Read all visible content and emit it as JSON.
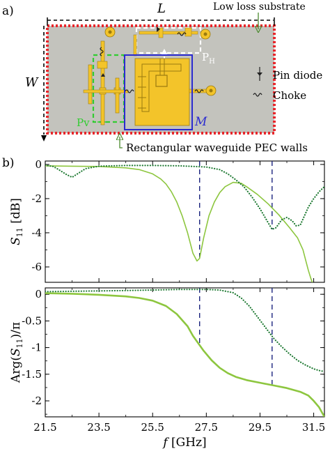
{
  "panel_a": {
    "label": "a)",
    "dim_L": "L",
    "dim_W": "W",
    "substrate_label": "Low loss substrate",
    "waveguide_label": "Rectangular waveguide PEC walls",
    "pin_diode_label": "Pin diode",
    "choke_label": "Choke",
    "ph_label": "P",
    "ph_sub": "H",
    "pv_label": "Pv",
    "m_label": "M",
    "colors": {
      "substrate": "#c3c3bd",
      "pec_wall": "#e8262b",
      "metal": "#f3c42a",
      "metal_edge": "#9a7a10",
      "ph_box": "#ffffff",
      "pv_box": "#32cc32",
      "m_box": "#2a2ad0",
      "pointer": "#4b8a2e"
    }
  },
  "panel_b": {
    "label": "b)"
  },
  "chart_data": [
    {
      "type": "line",
      "ylabel": "S11 [dB]",
      "ylabel_main": "S",
      "ylabel_sub": "11",
      "ylabel_unit": " [dB]",
      "xlim": [
        21.5,
        31.9
      ],
      "ylim": [
        -6.9,
        0.2
      ],
      "yticks": [
        0,
        -2,
        -4,
        -6
      ],
      "ytick_labels": [
        "0",
        "-2",
        "-4",
        "-6"
      ],
      "grid": false,
      "series": [
        {
          "style": "solid",
          "color": "#8dc63f",
          "x": [
            21.5,
            22.5,
            23.5,
            24.5,
            25.0,
            25.5,
            25.8,
            26.0,
            26.2,
            26.4,
            26.6,
            26.8,
            27.0,
            27.15,
            27.25,
            27.4,
            27.6,
            27.8,
            28.0,
            28.2,
            28.5,
            28.8,
            29.0,
            29.4,
            29.8,
            30.2,
            30.6,
            30.9,
            31.1,
            31.2,
            31.3,
            31.4,
            31.5,
            31.6
          ],
          "y": [
            -0.08,
            -0.1,
            -0.12,
            -0.2,
            -0.3,
            -0.55,
            -0.85,
            -1.15,
            -1.6,
            -2.2,
            -3.0,
            -4.0,
            -5.2,
            -5.65,
            -5.5,
            -4.3,
            -3.0,
            -2.2,
            -1.65,
            -1.3,
            -1.05,
            -1.1,
            -1.3,
            -1.75,
            -2.3,
            -2.95,
            -3.7,
            -4.3,
            -5.0,
            -5.6,
            -6.2,
            -6.7,
            -7.1,
            -7.6
          ]
        },
        {
          "style": "dotted",
          "color": "#1f7a33",
          "x": [
            21.5,
            21.8,
            22.0,
            22.3,
            22.5,
            22.7,
            23.0,
            23.5,
            24.5,
            25.5,
            26.5,
            27.5,
            28.0,
            28.3,
            28.6,
            28.9,
            29.2,
            29.5,
            29.8,
            29.95,
            30.1,
            30.3,
            30.5,
            30.7,
            30.85,
            31.0,
            31.1,
            31.3,
            31.5,
            31.7,
            31.9
          ],
          "y": [
            -0.05,
            -0.12,
            -0.3,
            -0.6,
            -0.75,
            -0.55,
            -0.25,
            -0.1,
            -0.06,
            -0.06,
            -0.08,
            -0.15,
            -0.3,
            -0.55,
            -0.9,
            -1.3,
            -1.9,
            -2.6,
            -3.4,
            -3.8,
            -3.7,
            -3.25,
            -3.1,
            -3.3,
            -3.6,
            -3.55,
            -3.2,
            -2.5,
            -2.0,
            -1.6,
            -1.3
          ]
        }
      ],
      "vlines": [
        {
          "x": 27.25,
          "y_from": -5.65,
          "y_to": 0.2,
          "color": "#1a237e"
        },
        {
          "x": 29.95,
          "y_from": -3.8,
          "y_to": 0.2,
          "color": "#1a237e"
        }
      ]
    },
    {
      "type": "line",
      "ylabel": "Arg(S11)/π",
      "ylabel_pre": "Arg(",
      "ylabel_main": "S",
      "ylabel_sub": "11",
      "ylabel_post": ")/π",
      "xlabel": "f [GHz]",
      "xlabel_main": "f",
      "xlabel_unit": " [GHz]",
      "xlim": [
        21.5,
        31.9
      ],
      "ylim": [
        -2.3,
        0.12
      ],
      "xticks": [
        21.5,
        23.5,
        25.5,
        27.5,
        29.5,
        31.5
      ],
      "xtick_labels": [
        "21.5",
        "23.5",
        "25.5",
        "27.5",
        "29.5",
        "31.5"
      ],
      "yticks": [
        0,
        -0.5,
        -1,
        -1.5,
        -2
      ],
      "ytick_labels": [
        "0",
        "-0.5",
        "-1",
        "-1.5",
        "-2"
      ],
      "grid": false,
      "series": [
        {
          "style": "solid",
          "color": "#8dc63f",
          "x": [
            21.5,
            22.5,
            23.5,
            24.5,
            25.0,
            25.5,
            26.0,
            26.4,
            26.8,
            27.0,
            27.2,
            27.4,
            27.7,
            28.0,
            28.3,
            28.6,
            29.0,
            29.5,
            30.0,
            30.5,
            31.0,
            31.3,
            31.5,
            31.7,
            31.9
          ],
          "y": [
            0.02,
            0.01,
            -0.01,
            -0.04,
            -0.07,
            -0.12,
            -0.22,
            -0.37,
            -0.6,
            -0.78,
            -0.92,
            -1.06,
            -1.24,
            -1.38,
            -1.48,
            -1.55,
            -1.61,
            -1.66,
            -1.71,
            -1.76,
            -1.83,
            -1.9,
            -2.0,
            -2.12,
            -2.3
          ]
        },
        {
          "style": "dotted",
          "color": "#1f7a33",
          "x": [
            21.5,
            23.0,
            24.5,
            25.5,
            26.5,
            27.5,
            28.0,
            28.5,
            28.8,
            29.1,
            29.4,
            29.7,
            30.0,
            30.3,
            30.6,
            30.9,
            31.2,
            31.5,
            31.7,
            31.9
          ],
          "y": [
            0.05,
            0.06,
            0.07,
            0.08,
            0.09,
            0.09,
            0.08,
            0.03,
            -0.07,
            -0.22,
            -0.42,
            -0.62,
            -0.82,
            -0.98,
            -1.12,
            -1.24,
            -1.33,
            -1.4,
            -1.43,
            -1.45
          ]
        }
      ],
      "vlines": [
        {
          "x": 27.25,
          "y_from": -0.92,
          "y_to": 0.12,
          "color": "#1a237e"
        },
        {
          "x": 29.95,
          "y_from": -1.72,
          "y_to": 0.12,
          "color": "#1a237e"
        }
      ]
    }
  ]
}
